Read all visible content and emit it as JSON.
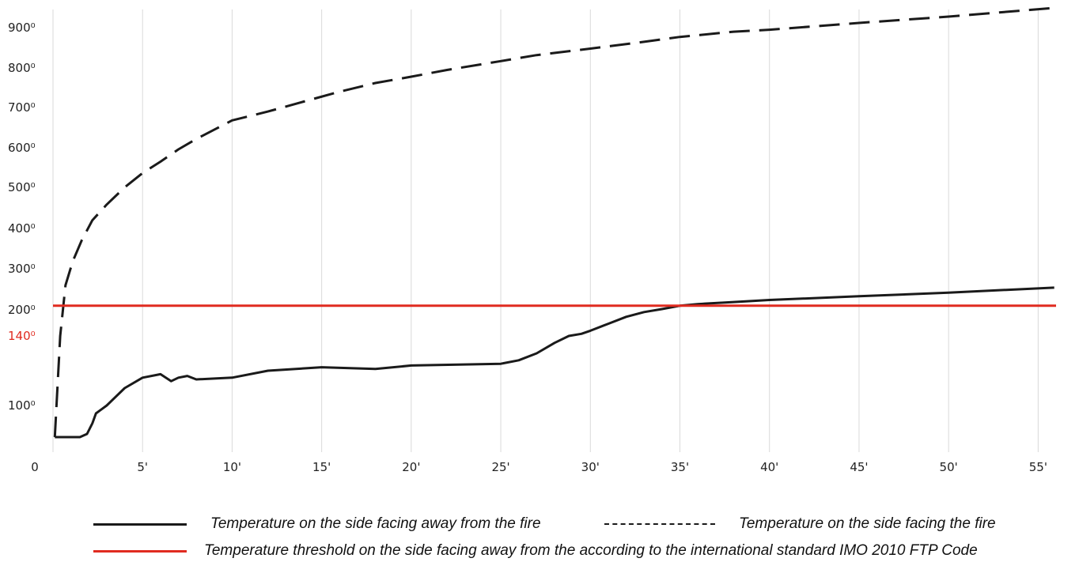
{
  "chart_data": {
    "type": "line",
    "xlim": [
      0,
      56
    ],
    "ylim": [
      0,
      930
    ],
    "x_ticks": [
      {
        "value": 0,
        "label": "0"
      },
      {
        "value": 5,
        "label": "5'"
      },
      {
        "value": 10,
        "label": "10'"
      },
      {
        "value": 15,
        "label": "15'"
      },
      {
        "value": 20,
        "label": "20'"
      },
      {
        "value": 25,
        "label": "25'"
      },
      {
        "value": 30,
        "label": "30'"
      },
      {
        "value": 35,
        "label": "35'"
      },
      {
        "value": 40,
        "label": "40'"
      },
      {
        "value": 45,
        "label": "45'"
      },
      {
        "value": 50,
        "label": "50'"
      },
      {
        "value": 55,
        "label": "55'"
      }
    ],
    "y_ticks": [
      {
        "value": 100,
        "label": "100⁰"
      },
      {
        "value": 140,
        "label": "140⁰",
        "color": "#e02b20"
      },
      {
        "value": 200,
        "label": "200⁰"
      },
      {
        "value": 300,
        "label": "300⁰"
      },
      {
        "value": 400,
        "label": "400⁰"
      },
      {
        "value": 500,
        "label": "500⁰"
      },
      {
        "value": 600,
        "label": "600⁰"
      },
      {
        "value": 700,
        "label": "700⁰"
      },
      {
        "value": 800,
        "label": "800⁰"
      },
      {
        "value": 900,
        "label": "900⁰"
      }
    ],
    "grid": {
      "vertical": true,
      "horizontal": false,
      "color": "#d9d9d9"
    },
    "legend_position": "bottom",
    "series": [
      {
        "name": "Temperature on the side facing away from the fire",
        "style": "solid",
        "color": "#1a1a1a",
        "points": [
          [
            0.1,
            20
          ],
          [
            1.5,
            20
          ],
          [
            1.9,
            28
          ],
          [
            2.2,
            55
          ],
          [
            2.4,
            80
          ],
          [
            3,
            100
          ],
          [
            4,
            110
          ],
          [
            5,
            116
          ],
          [
            6,
            118
          ],
          [
            6.6,
            114
          ],
          [
            7,
            116
          ],
          [
            7.5,
            117
          ],
          [
            8,
            115
          ],
          [
            10,
            116
          ],
          [
            12,
            120
          ],
          [
            15,
            122
          ],
          [
            18,
            121
          ],
          [
            20,
            123
          ],
          [
            25,
            124
          ],
          [
            26,
            126
          ],
          [
            27,
            130
          ],
          [
            28,
            136
          ],
          [
            28.8,
            140
          ],
          [
            29.5,
            145
          ],
          [
            30,
            152
          ],
          [
            31,
            168
          ],
          [
            32,
            184
          ],
          [
            33,
            195
          ],
          [
            34,
            202
          ],
          [
            35,
            210
          ],
          [
            36,
            214
          ],
          [
            38,
            219
          ],
          [
            40,
            224
          ],
          [
            45,
            233
          ],
          [
            50,
            242
          ],
          [
            55.9,
            254
          ]
        ]
      },
      {
        "name": "Temperature on the side facing the fire",
        "style": "dashed",
        "color": "#1a1a1a",
        "points": [
          [
            0.1,
            20
          ],
          [
            0.4,
            140
          ],
          [
            0.7,
            260
          ],
          [
            1.1,
            318
          ],
          [
            1.6,
            370
          ],
          [
            2.2,
            420
          ],
          [
            3,
            458
          ],
          [
            4,
            500
          ],
          [
            5,
            536
          ],
          [
            6,
            565
          ],
          [
            7,
            596
          ],
          [
            8,
            622
          ],
          [
            9,
            645
          ],
          [
            10,
            668
          ],
          [
            12,
            690
          ],
          [
            14,
            715
          ],
          [
            16,
            740
          ],
          [
            18,
            762
          ],
          [
            20,
            778
          ],
          [
            22,
            795
          ],
          [
            25,
            817
          ],
          [
            27,
            832
          ],
          [
            30,
            848
          ],
          [
            33,
            865
          ],
          [
            35,
            877
          ],
          [
            38,
            890
          ],
          [
            40,
            895
          ],
          [
            45,
            912
          ],
          [
            50,
            928
          ],
          [
            55.9,
            950
          ]
        ]
      },
      {
        "name": "Temperature threshold on the side facing away from the according to the international standard IMO 2010 FTP Code",
        "style": "solid",
        "color": "#e02b20",
        "points": [
          [
            0,
            210
          ],
          [
            56,
            210
          ]
        ]
      }
    ]
  },
  "legend": {
    "item1": "Temperature on the side facing away from the fire",
    "item2": "Temperature on the side facing the fire",
    "item3": "Temperature threshold on the side facing away from the according to the international standard IMO 2010 FTP Code"
  }
}
